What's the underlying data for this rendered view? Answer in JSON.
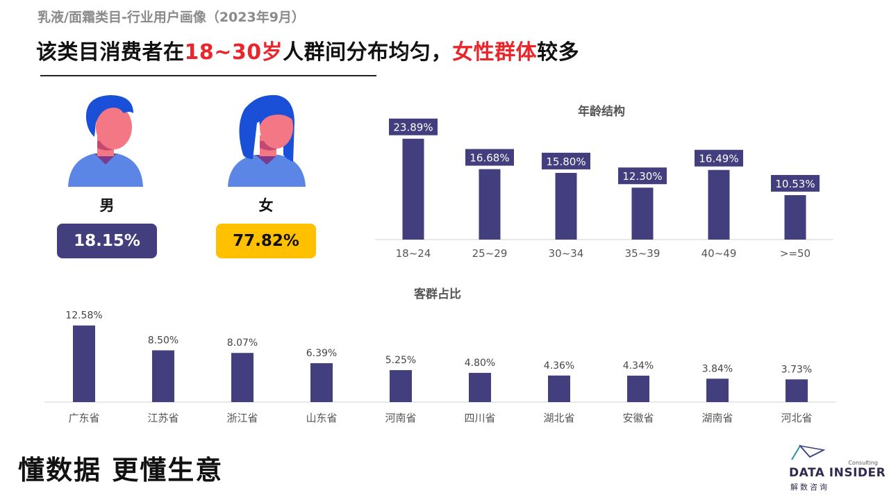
{
  "header": {
    "subtitle": "乳液/面霜类目-行业用户画像（2023年9月）",
    "headline_part1": "该类目消费者在",
    "headline_highlight1": "18~30岁",
    "headline_part2": "人群间分布均匀，",
    "headline_highlight2": "女性群体",
    "headline_part3": "较多"
  },
  "gender": {
    "male_label": "男",
    "male_value": "18.15%",
    "female_label": "女",
    "female_value": "77.82%"
  },
  "colors": {
    "bar": "#433f7e",
    "highlight": "#e8262b",
    "female_box": "#ffc000",
    "avatar_hair": "#1a4fd8",
    "avatar_skin": "#f47785",
    "avatar_shirt": "#5b86e5"
  },
  "chart_data": [
    {
      "type": "bar",
      "title": "年龄结构",
      "categories": [
        "18~24",
        "25~29",
        "30~34",
        "35~39",
        "40~49",
        ">=50"
      ],
      "values": [
        23.89,
        16.68,
        15.8,
        12.3,
        16.49,
        10.53
      ],
      "data_labels": [
        "23.89%",
        "16.68%",
        "15.80%",
        "12.30%",
        "16.49%",
        "10.53%"
      ],
      "ylim": [
        0,
        25
      ],
      "grid": false,
      "label_style": "boxed"
    },
    {
      "type": "bar",
      "title": "客群占比",
      "categories": [
        "广东省",
        "江苏省",
        "浙江省",
        "山东省",
        "河南省",
        "四川省",
        "湖北省",
        "安徽省",
        "湖南省",
        "河北省"
      ],
      "values": [
        12.58,
        8.5,
        8.07,
        6.39,
        5.25,
        4.8,
        4.36,
        4.34,
        3.84,
        3.73
      ],
      "data_labels": [
        "12.58%",
        "8.50%",
        "8.07%",
        "6.39%",
        "5.25%",
        "4.80%",
        "4.36%",
        "4.34%",
        "3.84%",
        "3.73%"
      ],
      "ylim": [
        0,
        13
      ],
      "grid": false,
      "label_style": "plain"
    }
  ],
  "footer": {
    "slogan": "懂数据 更懂生意",
    "brand_small": "Consulting",
    "brand_name": "DATA INSIDER",
    "brand_cn": "解数咨询"
  }
}
